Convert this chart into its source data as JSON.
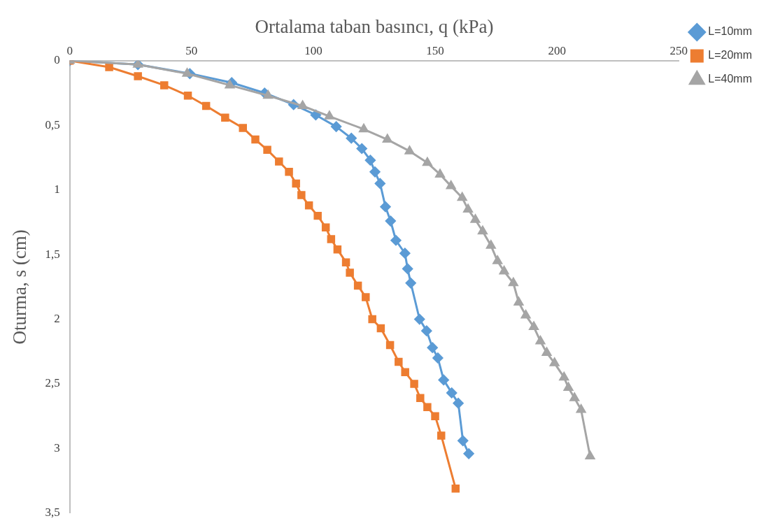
{
  "chart_data": {
    "type": "line",
    "xlabel": "Ortalama taban basıncı, q (kPa)",
    "ylabel": "Oturma, s (cm)",
    "xlim": [
      0,
      250
    ],
    "xticks": [
      0,
      50,
      100,
      150,
      200,
      250
    ],
    "ylim": [
      3.5,
      0
    ],
    "yticks": [
      0,
      {
        "value": 0.5,
        "label": "0,5"
      },
      1,
      {
        "value": 1.5,
        "label": "1,5"
      },
      2,
      {
        "value": 2.5,
        "label": "2,5"
      },
      3,
      {
        "value": 3.5,
        "label": "3,5"
      }
    ],
    "grid": false,
    "legend": "top right",
    "line_style": "solid",
    "series": [
      {
        "name": "L=10mm",
        "color": "#5b9bd5",
        "marker": "diamond",
        "x": [
          0,
          28,
          49.3,
          66.5,
          80,
          91.9,
          101,
          109.4,
          115.6,
          119.9,
          123.4,
          125.3,
          127.4,
          129.6,
          131.7,
          133.9,
          137.6,
          138.7,
          140,
          143.6,
          146.5,
          148.9,
          151.1,
          153.5,
          156.8,
          159.5,
          161.4,
          163.8
        ],
        "values": [
          0,
          0.03,
          0.1,
          0.17,
          0.25,
          0.34,
          0.42,
          0.51,
          0.6,
          0.68,
          0.77,
          0.86,
          0.95,
          1.13,
          1.24,
          1.39,
          1.49,
          1.61,
          1.72,
          2.0,
          2.09,
          2.22,
          2.3,
          2.47,
          2.57,
          2.65,
          2.94,
          3.04
        ]
      },
      {
        "name": "L=20mm",
        "color": "#ed7d31",
        "marker": "square",
        "x": [
          0,
          16.2,
          28,
          38.8,
          48.5,
          56,
          63.8,
          71.1,
          76.2,
          81.1,
          85.9,
          90,
          92.9,
          95.1,
          98.2,
          101.8,
          105.1,
          107.3,
          109.9,
          113.4,
          115,
          118.3,
          121.5,
          124.2,
          127.7,
          131.5,
          135,
          137.7,
          141.4,
          143.9,
          146.8,
          150,
          152.5,
          158.4
        ],
        "values": [
          0,
          0.05,
          0.12,
          0.19,
          0.27,
          0.35,
          0.44,
          0.52,
          0.61,
          0.69,
          0.78,
          0.86,
          0.95,
          1.04,
          1.12,
          1.2,
          1.29,
          1.38,
          1.46,
          1.56,
          1.64,
          1.74,
          1.83,
          2.0,
          2.07,
          2.2,
          2.33,
          2.41,
          2.5,
          2.61,
          2.68,
          2.75,
          2.9,
          3.31
        ]
      },
      {
        "name": "L=40mm",
        "color": "#a5a5a5",
        "marker": "triangle",
        "x": [
          0,
          28,
          48.2,
          65.7,
          81.4,
          95.6,
          106.6,
          120.7,
          130.4,
          139.5,
          146.8,
          152,
          156.5,
          161.1,
          163.5,
          166.5,
          169.5,
          172.9,
          175.6,
          178.3,
          182.1,
          184.3,
          187.2,
          190.5,
          193.2,
          195.8,
          199,
          202.9,
          204.7,
          207.2,
          209.9,
          213.6
        ],
        "values": [
          0,
          0.03,
          0.1,
          0.19,
          0.27,
          0.35,
          0.43,
          0.53,
          0.61,
          0.7,
          0.79,
          0.88,
          0.97,
          1.06,
          1.15,
          1.23,
          1.32,
          1.43,
          1.55,
          1.63,
          1.72,
          1.87,
          1.97,
          2.06,
          2.17,
          2.26,
          2.34,
          2.45,
          2.53,
          2.61,
          2.7,
          3.06
        ]
      }
    ]
  }
}
